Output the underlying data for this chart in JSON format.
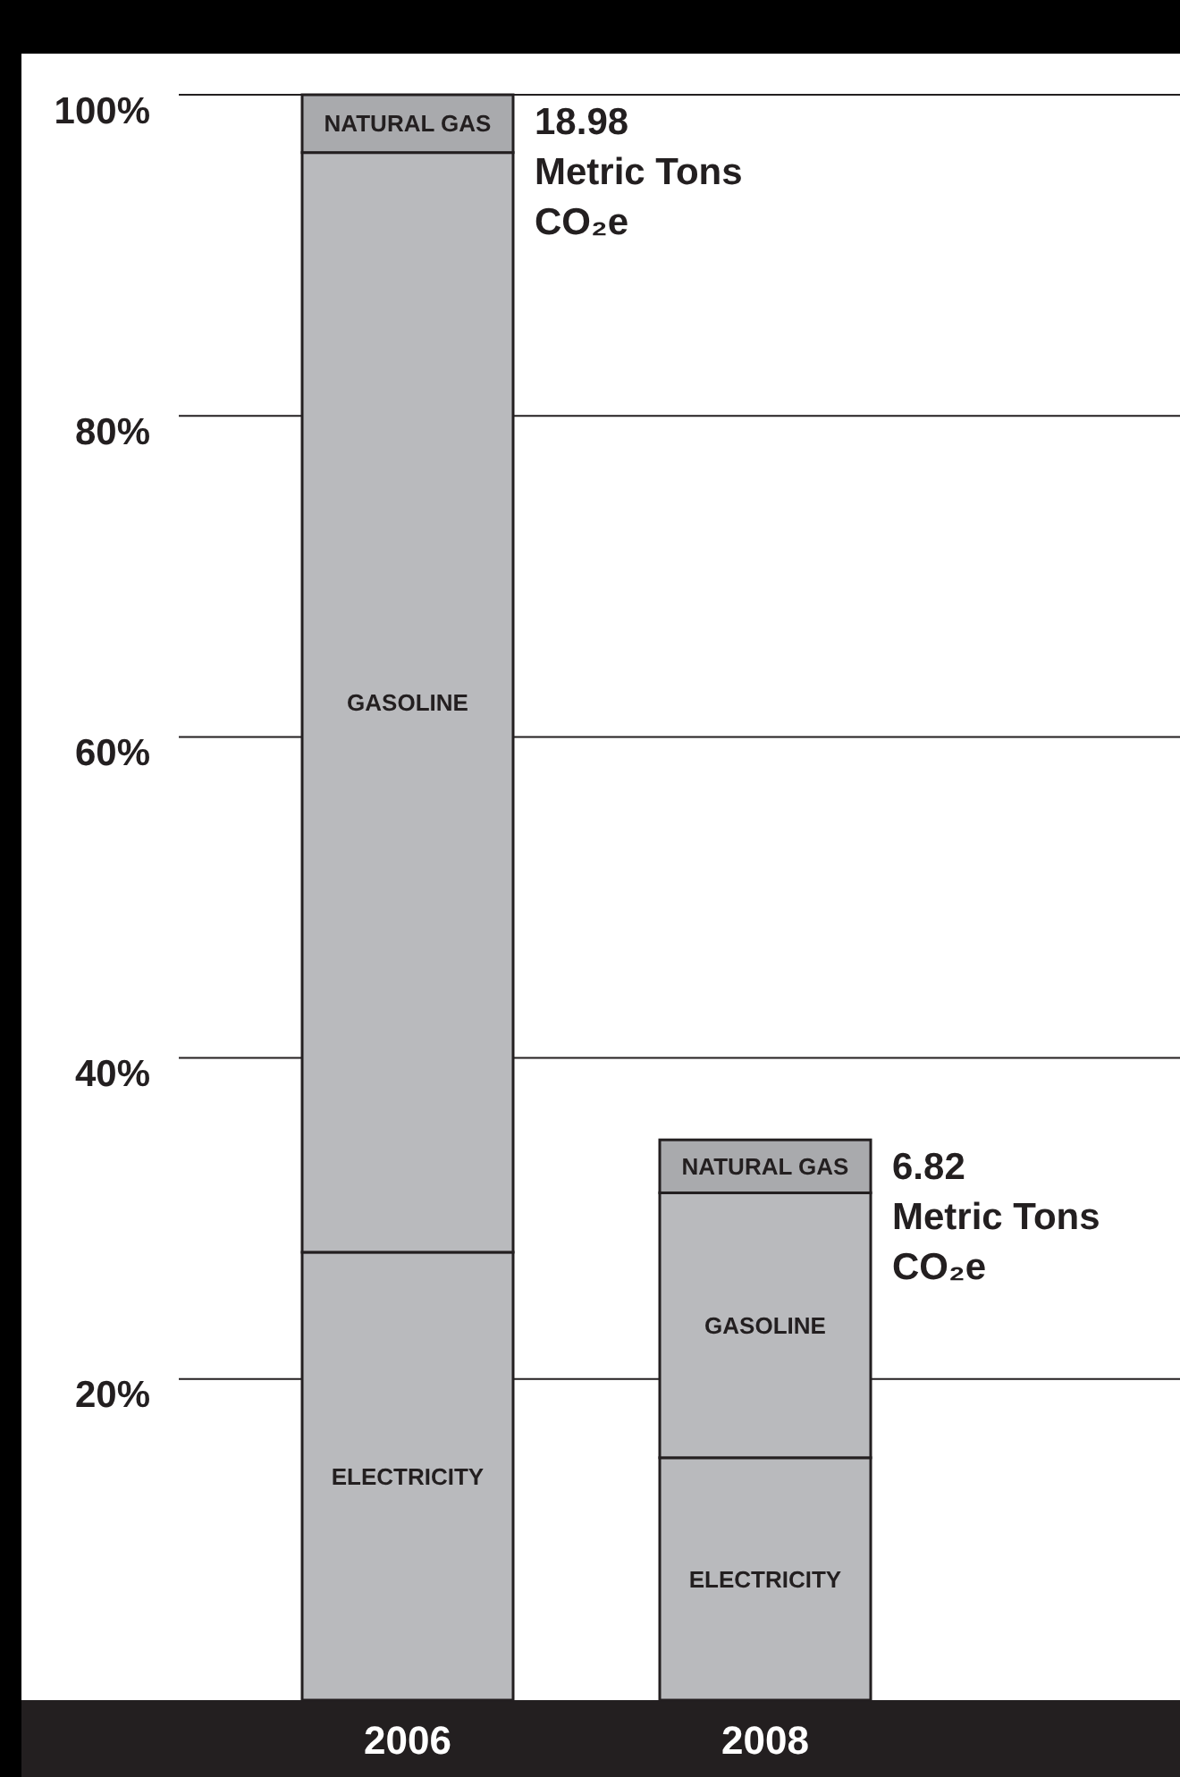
{
  "chart_data": {
    "type": "bar",
    "stacked": true,
    "categories": [
      "2006",
      "2008"
    ],
    "series": [
      {
        "name": "ELECTRICITY",
        "color": "#b9babd",
        "values": [
          27.9,
          15.1
        ]
      },
      {
        "name": "GASOLINE",
        "color": "#b9babd",
        "values": [
          68.5,
          16.5
        ]
      },
      {
        "name": "NATURAL GAS",
        "color": "#a9aaad",
        "values": [
          3.6,
          3.3
        ]
      }
    ],
    "ylim": [
      0,
      100
    ],
    "yticks": [
      {
        "value": 20,
        "label": "20%"
      },
      {
        "value": 40,
        "label": "40%"
      },
      {
        "value": 60,
        "label": "60%"
      },
      {
        "value": 80,
        "label": "80%"
      },
      {
        "value": 100,
        "label": "100%"
      }
    ],
    "grid": "y",
    "annotations": [
      "18.98\nMetric Tons\nCO₂e",
      "6.82\nMetric Tons\nCO₂e"
    ]
  }
}
